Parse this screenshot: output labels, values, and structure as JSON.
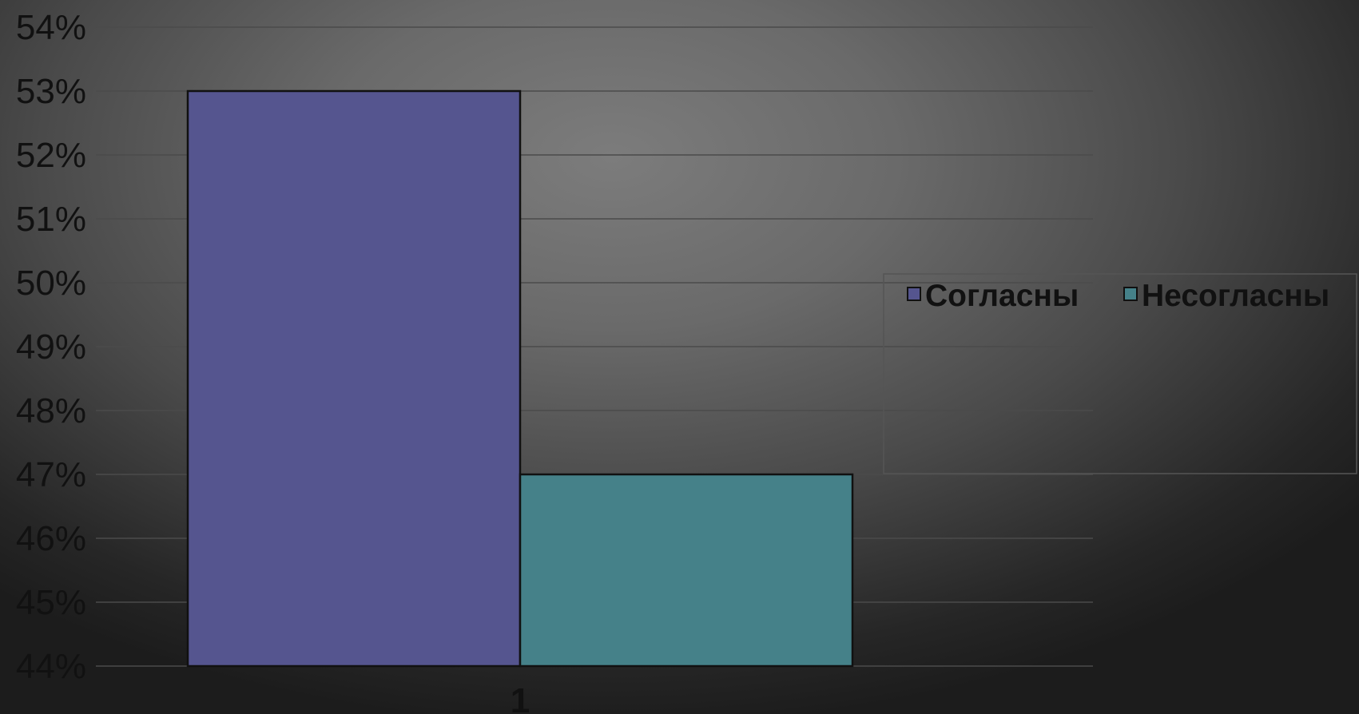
{
  "chart_data": {
    "type": "bar",
    "categories": [
      "1"
    ],
    "series": [
      {
        "name": "Согласны",
        "values": [
          53
        ],
        "color": "#55558f"
      },
      {
        "name": "Несогласны",
        "values": [
          47
        ],
        "color": "#458189"
      }
    ],
    "ylim": [
      44,
      54
    ],
    "yticks": [
      "44%",
      "45%",
      "46%",
      "47%",
      "48%",
      "49%",
      "50%",
      "51%",
      "52%",
      "53%",
      "54%"
    ],
    "grid": true,
    "legend_position": "right"
  }
}
